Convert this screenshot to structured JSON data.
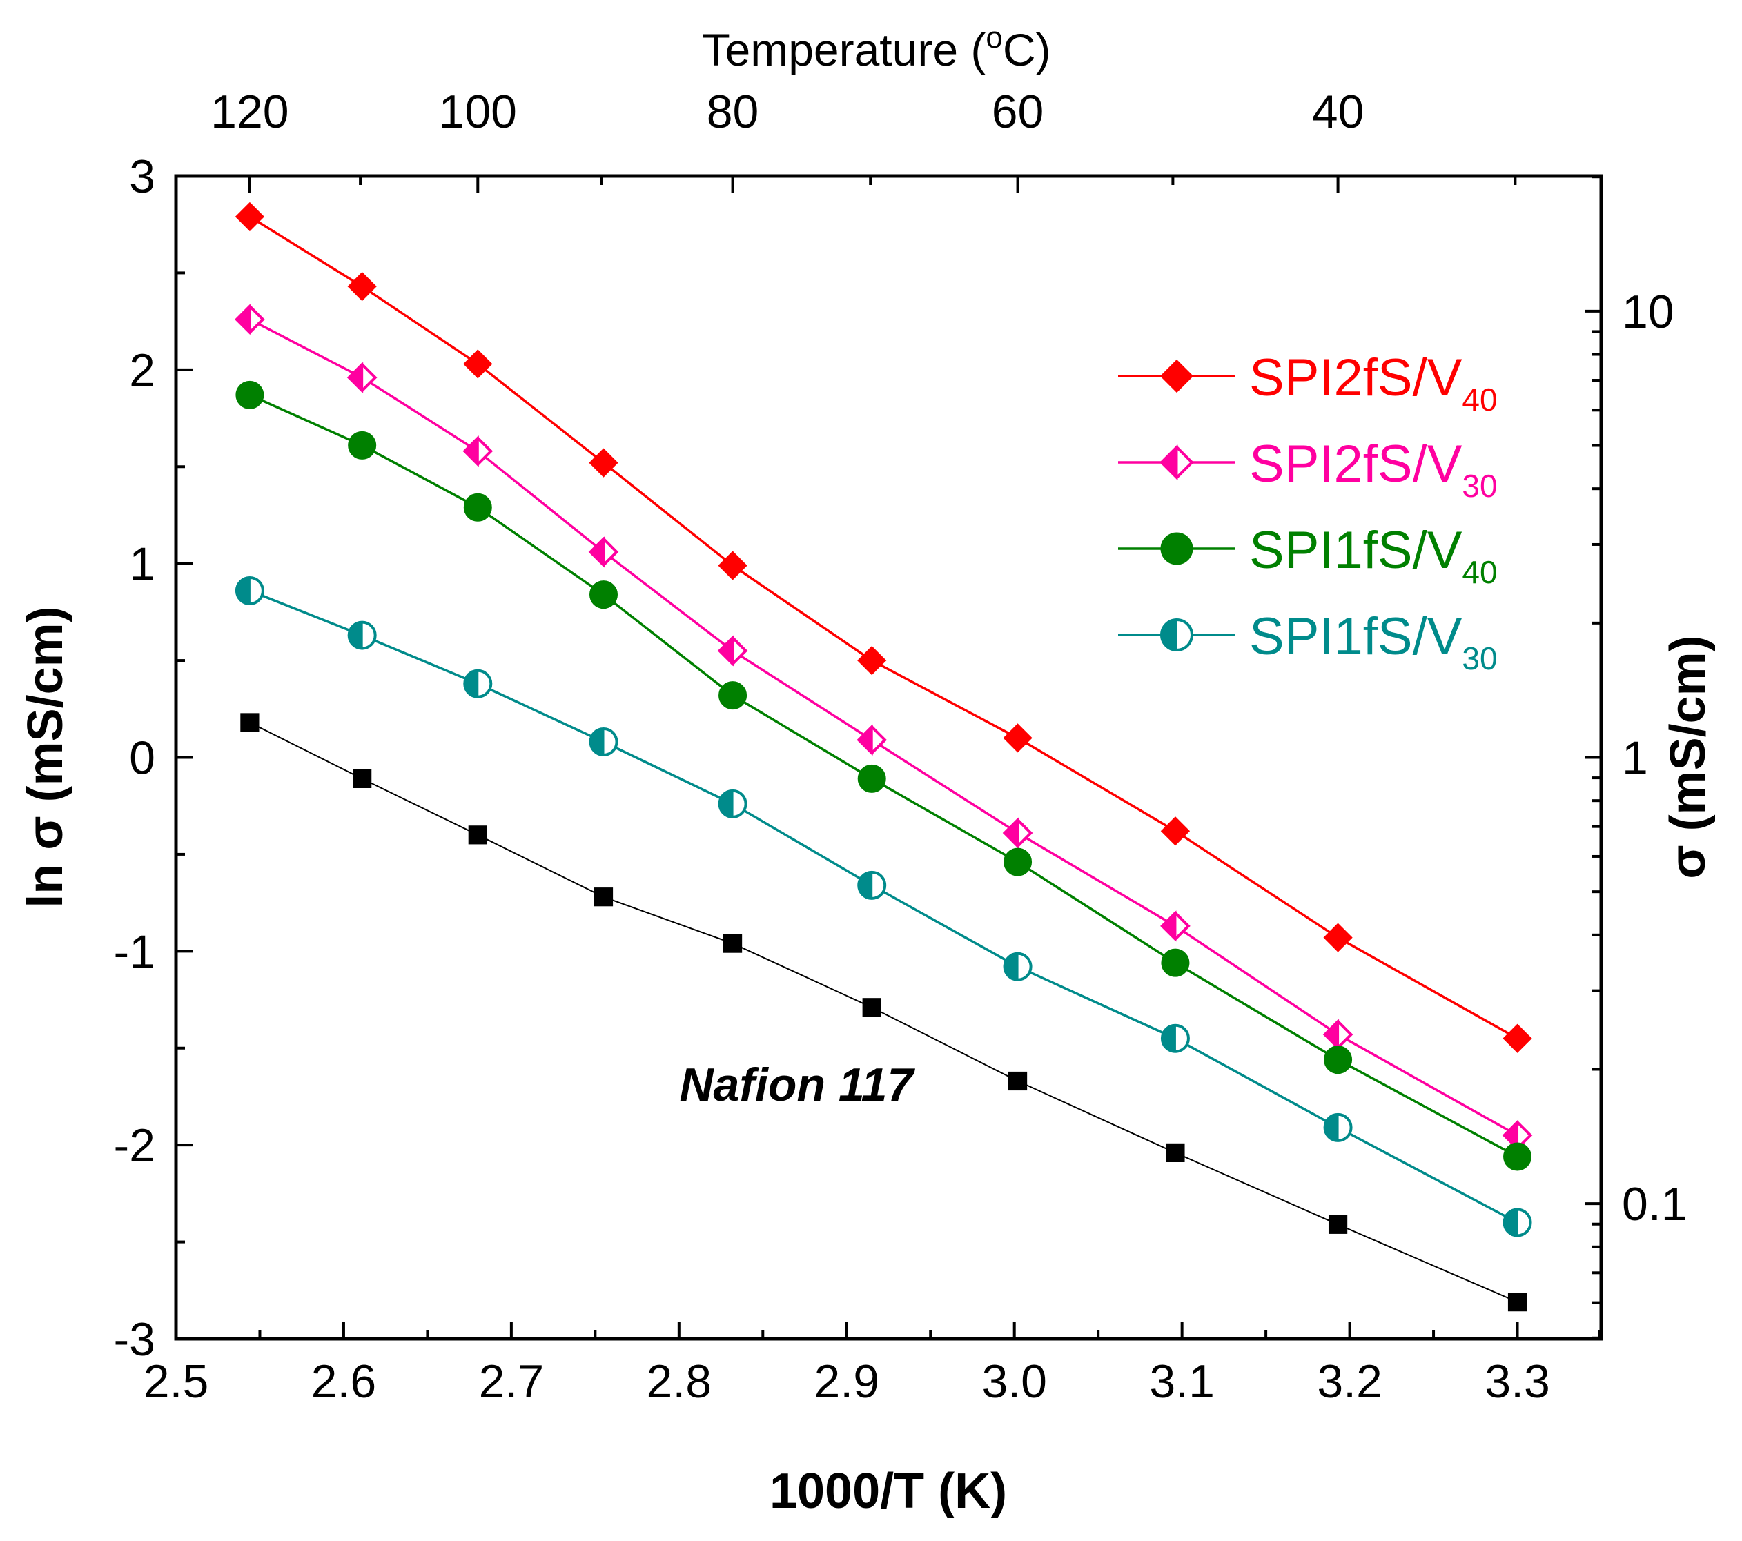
{
  "chart_data": {
    "type": "line",
    "xlabel": "1000/T (K)",
    "ylabel": "ln σ  (mS/cm)",
    "y2label": "σ  (mS/cm)",
    "x2label": "Temperature  (°C)",
    "x2label_parts": {
      "main": "Temperature  (",
      "sup": "o",
      "unit": "C)"
    },
    "xlim": [
      2.5,
      3.35
    ],
    "ylim": [
      -3,
      3
    ],
    "x_ticks": [
      "2.5",
      "2.6",
      "2.7",
      "2.8",
      "2.9",
      "3.0",
      "3.1",
      "3.2",
      "3.3"
    ],
    "y_ticks": [
      "3",
      "2",
      "1",
      "0",
      "-1",
      "-2",
      "-3"
    ],
    "top_ticks": [
      {
        "label": "120",
        "x": 2.544
      },
      {
        "label": "100",
        "x": 2.68
      },
      {
        "label": "80",
        "x": 2.832
      },
      {
        "label": "60",
        "x": 3.002
      },
      {
        "label": "40",
        "x": 3.193
      }
    ],
    "right_ticks": [
      {
        "label": "10",
        "value": 10
      },
      {
        "label": "1",
        "value": 1
      },
      {
        "label": "0.1",
        "value": 0.1
      }
    ],
    "x": [
      2.544,
      2.611,
      2.68,
      2.755,
      2.832,
      2.915,
      3.002,
      3.096,
      3.193,
      3.3
    ],
    "series": [
      {
        "name": "SPI2fS/V40",
        "label_main": "SPI2fS/V",
        "label_sub": "40",
        "color": "#ff0000",
        "marker": "diamond",
        "values": [
          2.79,
          2.43,
          2.03,
          1.52,
          0.99,
          0.5,
          0.1,
          -0.38,
          -0.93,
          -1.45
        ]
      },
      {
        "name": "SPI2fS/V30",
        "label_main": "SPI2fS/V",
        "label_sub": "30",
        "color": "#ff00a0",
        "marker": "half-diamond",
        "values": [
          2.26,
          1.96,
          1.58,
          1.06,
          0.55,
          0.09,
          -0.39,
          -0.87,
          -1.43,
          -1.95
        ]
      },
      {
        "name": "SPI1fS/V40",
        "label_main": "SPI1fS/V",
        "label_sub": "40",
        "color": "#008000",
        "marker": "circle",
        "values": [
          1.87,
          1.61,
          1.29,
          0.84,
          0.32,
          -0.11,
          -0.54,
          -1.06,
          -1.56,
          -2.06
        ]
      },
      {
        "name": "SPI1fS/V30",
        "label_main": "SPI1fS/V",
        "label_sub": "30",
        "color": "#008b8b",
        "marker": "half-circle",
        "values": [
          0.86,
          0.63,
          0.38,
          0.08,
          -0.24,
          -0.66,
          -1.08,
          -1.45,
          -1.91,
          -2.4
        ]
      },
      {
        "name": "Nafion 117",
        "label_main": "Nafion 117",
        "label_sub": "",
        "color": "#000000",
        "marker": "square",
        "legend": false,
        "values": [
          0.18,
          -0.11,
          -0.4,
          -0.72,
          -0.96,
          -1.29,
          -1.67,
          -2.04,
          -2.41,
          -2.81
        ]
      }
    ],
    "annotations": [
      {
        "text": "Nafion 117",
        "x": 2.87,
        "y": -1.7
      }
    ],
    "legend_position": "top-right",
    "grid": false
  }
}
